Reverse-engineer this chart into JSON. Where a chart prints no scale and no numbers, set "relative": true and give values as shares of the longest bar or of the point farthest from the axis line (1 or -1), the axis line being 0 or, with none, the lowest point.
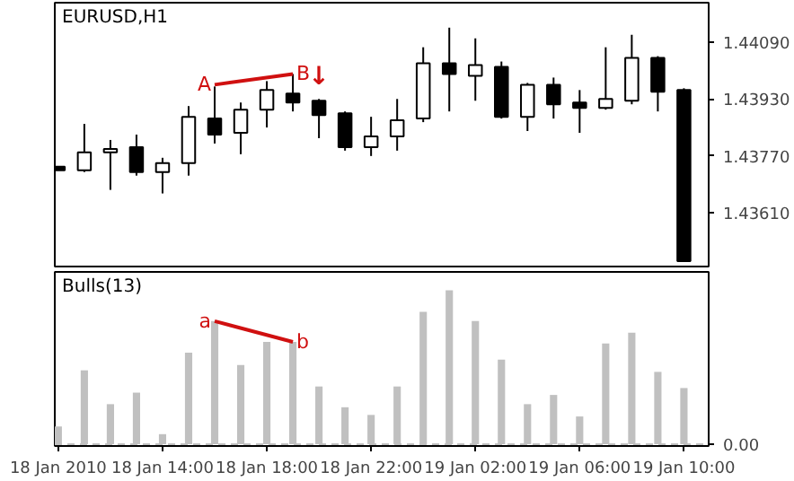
{
  "chart_data": [
    {
      "type": "candlestick",
      "title": "EURUSD,H1",
      "x": [
        "2010-01-18T10:00",
        "2010-01-18T11:00",
        "2010-01-18T12:00",
        "2010-01-18T13:00",
        "2010-01-18T14:00",
        "2010-01-18T15:00",
        "2010-01-18T16:00",
        "2010-01-18T17:00",
        "2010-01-18T18:00",
        "2010-01-18T19:00",
        "2010-01-18T20:00",
        "2010-01-18T21:00",
        "2010-01-18T22:00",
        "2010-01-18T23:00",
        "2010-01-19T00:00",
        "2010-01-19T01:00",
        "2010-01-19T02:00",
        "2010-01-19T03:00",
        "2010-01-19T04:00",
        "2010-01-19T05:00",
        "2010-01-19T06:00",
        "2010-01-19T07:00",
        "2010-01-19T08:00",
        "2010-01-19T09:00",
        "2010-01-19T10:00"
      ],
      "ohlc": [
        [
          1.4374,
          1.4374,
          1.4373,
          1.4373
        ],
        [
          1.4373,
          1.4386,
          1.43725,
          1.4378
        ],
        [
          1.4378,
          1.43815,
          1.43675,
          1.4379
        ],
        [
          1.43795,
          1.4383,
          1.43715,
          1.43725
        ],
        [
          1.43725,
          1.43765,
          1.43665,
          1.4375
        ],
        [
          1.4375,
          1.4391,
          1.43715,
          1.4388
        ],
        [
          1.43875,
          1.43965,
          1.43805,
          1.4383
        ],
        [
          1.43835,
          1.4392,
          1.43775,
          1.439
        ],
        [
          1.439,
          1.4398,
          1.4385,
          1.43955
        ],
        [
          1.43945,
          1.44,
          1.43895,
          1.4392
        ],
        [
          1.43925,
          1.4393,
          1.4382,
          1.43885
        ],
        [
          1.4389,
          1.43895,
          1.43785,
          1.43795
        ],
        [
          1.43795,
          1.4388,
          1.4377,
          1.43825
        ],
        [
          1.43825,
          1.4393,
          1.43785,
          1.4387
        ],
        [
          1.43875,
          1.44075,
          1.43865,
          1.4403
        ],
        [
          1.4403,
          1.4413,
          1.43895,
          1.44
        ],
        [
          1.43995,
          1.441,
          1.43925,
          1.44025
        ],
        [
          1.4402,
          1.44035,
          1.43875,
          1.4388
        ],
        [
          1.4388,
          1.43975,
          1.4384,
          1.4397
        ],
        [
          1.4397,
          1.4399,
          1.43875,
          1.43915
        ],
        [
          1.4392,
          1.43955,
          1.43835,
          1.43905
        ],
        [
          1.43905,
          1.44075,
          1.439,
          1.4393
        ],
        [
          1.43925,
          1.4411,
          1.43915,
          1.44045
        ],
        [
          1.44045,
          1.4405,
          1.43895,
          1.4395
        ],
        [
          1.43955,
          1.4396,
          1.43475,
          1.43475
        ]
      ],
      "series": [
        {
          "type": "line",
          "color": "#d01010",
          "x": [
            "2010-01-18T16:00",
            "2010-01-18T19:00"
          ],
          "values": [
            1.4397,
            1.44
          ]
        }
      ],
      "annotations": [
        {
          "text": "A",
          "x": "2010-01-18T16:00",
          "y": 1.4397
        },
        {
          "text": "B",
          "x": "2010-01-18T19:00",
          "y": 1.44
        },
        {
          "text": "↓",
          "x": "2010-01-18T20:00",
          "y": 1.4395
        }
      ],
      "xlim": [
        "2010-01-18T09:52",
        "2010-01-19T10:57"
      ],
      "ylim": [
        1.4346,
        1.442
      ],
      "yticks": [
        {
          "value": 1.4361,
          "label": "1.43610"
        },
        {
          "value": 1.4377,
          "label": "1.43770"
        },
        {
          "value": 1.4393,
          "label": "1.43930"
        },
        {
          "value": 1.4409,
          "label": "1.44090"
        }
      ],
      "tick_labels": "y"
    },
    {
      "type": "bar",
      "title": "Bulls(13)",
      "relative": true,
      "color": "#c0c0c0",
      "x": [
        "2010-01-18T10:00",
        "2010-01-18T11:00",
        "2010-01-18T12:00",
        "2010-01-18T13:00",
        "2010-01-18T14:00",
        "2010-01-18T15:00",
        "2010-01-18T16:00",
        "2010-01-18T17:00",
        "2010-01-18T18:00",
        "2010-01-18T19:00",
        "2010-01-18T20:00",
        "2010-01-18T21:00",
        "2010-01-18T22:00",
        "2010-01-18T23:00",
        "2010-01-19T00:00",
        "2010-01-19T01:00",
        "2010-01-19T02:00",
        "2010-01-19T03:00",
        "2010-01-19T04:00",
        "2010-01-19T05:00",
        "2010-01-19T06:00",
        "2010-01-19T07:00",
        "2010-01-19T08:00",
        "2010-01-19T09:00",
        "2010-01-19T10:00"
      ],
      "values": [
        0.115,
        0.48,
        0.26,
        0.335,
        0.065,
        0.595,
        0.8,
        0.515,
        0.665,
        0.665,
        0.375,
        0.24,
        0.19,
        0.375,
        0.86,
        1,
        0.8,
        0.55,
        0.26,
        0.32,
        0.18,
        0.655,
        0.725,
        0.47,
        0.365
      ],
      "series": [
        {
          "type": "line",
          "color": "#d01010",
          "x": [
            "2010-01-18T16:00",
            "2010-01-18T19:00"
          ],
          "values": [
            0.8,
            0.665
          ]
        }
      ],
      "annotations": [
        {
          "text": "a",
          "x": "2010-01-18T16:00",
          "y": 0.8
        },
        {
          "text": "b",
          "x": "2010-01-18T19:00",
          "y": 0.665
        }
      ],
      "ref_lines": [
        {
          "axis": "y",
          "value": 0,
          "label": "0.00",
          "color": "#c0c0c0",
          "line_style": "dashed"
        }
      ],
      "xlim": [
        "2010-01-18T09:52",
        "2010-01-19T10:57"
      ],
      "xticks": [
        {
          "value": "2010-01-18T10:00",
          "label": "18 Jan 2010"
        },
        {
          "value": "2010-01-18T14:00",
          "label": "18 Jan 14:00"
        },
        {
          "value": "2010-01-18T18:00",
          "label": "18 Jan 18:00"
        },
        {
          "value": "2010-01-18T22:00",
          "label": "18 Jan 22:00"
        },
        {
          "value": "2010-01-19T02:00",
          "label": "19 Jan 02:00"
        },
        {
          "value": "2010-01-19T06:00",
          "label": "19 Jan 06:00"
        },
        {
          "value": "2010-01-19T10:00",
          "label": "19 Jan 10:00"
        }
      ],
      "tick_labels": "x"
    }
  ]
}
